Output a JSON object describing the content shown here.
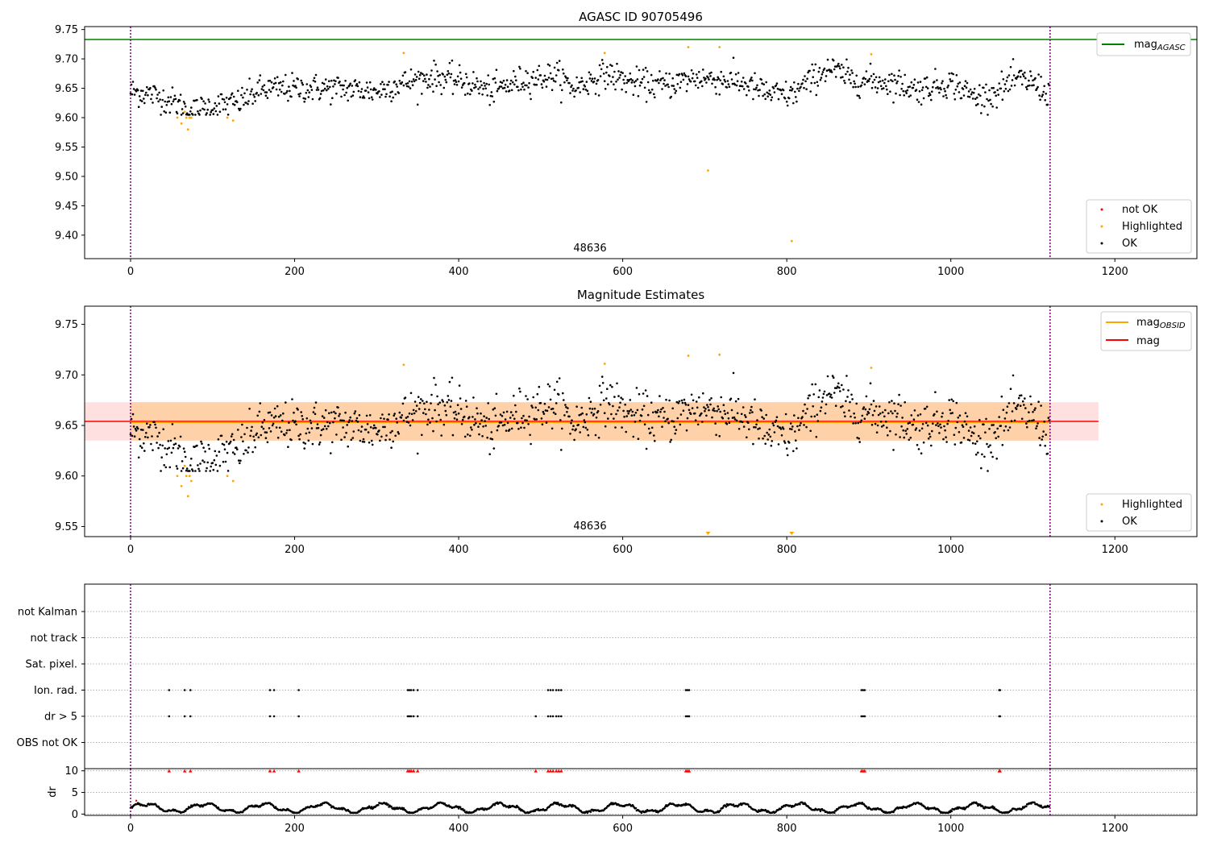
{
  "chart_data": [
    {
      "type": "scatter",
      "title": "AGASC ID 90705496",
      "xlabel": "",
      "ylabel": "",
      "xlim": [
        -56,
        1300
      ],
      "ylim": [
        9.36,
        9.755
      ],
      "xticks": [
        "0",
        "200",
        "400",
        "600",
        "800",
        "1000",
        "1200"
      ],
      "yticks": [
        "9.40",
        "9.45",
        "9.50",
        "9.55",
        "9.60",
        "9.65",
        "9.70",
        "9.75"
      ],
      "n_points": 1121,
      "mean_level": 9.655,
      "reference_line": {
        "name": "mag_AGASC",
        "label_main": "mag",
        "label_sub": "AGASC",
        "value": 9.733,
        "color": "#008000"
      },
      "vlines": [
        0,
        1121
      ],
      "annotation": {
        "text": "48636",
        "x": 560
      },
      "highlighted": [
        [
          57,
          9.6
        ],
        [
          62,
          9.59
        ],
        [
          66,
          9.61
        ],
        [
          68,
          9.6
        ],
        [
          70,
          9.58
        ],
        [
          72,
          9.6
        ],
        [
          74,
          9.6
        ],
        [
          118,
          9.6
        ],
        [
          125,
          9.595
        ],
        [
          333,
          9.71
        ],
        [
          578,
          9.71
        ],
        [
          680,
          9.72
        ],
        [
          704,
          9.51
        ],
        [
          718,
          9.72
        ],
        [
          806,
          9.39
        ],
        [
          903,
          9.708
        ]
      ],
      "legends": [
        {
          "position": "top-right",
          "entries": [
            {
              "label": "mag",
              "sub": "AGASC",
              "color": "#008000",
              "kind": "line"
            }
          ]
        },
        {
          "position": "bottom-right",
          "entries": [
            {
              "label": "not OK",
              "color": "#ff0000",
              "kind": "point"
            },
            {
              "label": "Highlighted",
              "color": "#ffa500",
              "kind": "point"
            },
            {
              "label": "OK",
              "color": "#000000",
              "kind": "point"
            }
          ]
        }
      ]
    },
    {
      "type": "scatter",
      "title": "Magnitude Estimates",
      "xlabel": "",
      "ylabel": "",
      "xlim": [
        -56,
        1300
      ],
      "ylim": [
        9.54,
        9.768
      ],
      "xticks": [
        "0",
        "200",
        "400",
        "600",
        "800",
        "1000",
        "1200"
      ],
      "yticks": [
        "9.55",
        "9.60",
        "9.65",
        "9.70",
        "9.75"
      ],
      "mag_line": {
        "label": "mag",
        "value": 9.654,
        "color": "#ff0000",
        "band": [
          9.635,
          9.673
        ],
        "x_range": [
          -56,
          1180
        ]
      },
      "mag_obsid_line": {
        "label_main": "mag",
        "label_sub": "OBSID",
        "value": 9.653,
        "color": "#ffa500",
        "band": [
          9.635,
          9.673
        ],
        "x_range": [
          0,
          1121
        ]
      },
      "vlines": [
        0,
        1121
      ],
      "annotation": {
        "text": "48636",
        "x": 560
      },
      "highlighted": [
        [
          57,
          9.6
        ],
        [
          62,
          9.59
        ],
        [
          66,
          9.61
        ],
        [
          68,
          9.6
        ],
        [
          70,
          9.58
        ],
        [
          72,
          9.6
        ],
        [
          74,
          9.595
        ],
        [
          118,
          9.6
        ],
        [
          125,
          9.595
        ],
        [
          333,
          9.71
        ],
        [
          578,
          9.711
        ],
        [
          680,
          9.719
        ],
        [
          718,
          9.72
        ],
        [
          903,
          9.707
        ]
      ],
      "out_of_range_markers": [
        704,
        806
      ],
      "legends": [
        {
          "position": "top-right",
          "entries": [
            {
              "label": "mag",
              "sub": "OBSID",
              "color": "#ffa500",
              "kind": "line"
            },
            {
              "label": "mag",
              "color": "#ff0000",
              "kind": "line"
            }
          ]
        },
        {
          "position": "bottom-right",
          "entries": [
            {
              "label": "Highlighted",
              "color": "#ffa500",
              "kind": "point"
            },
            {
              "label": "OK",
              "color": "#000000",
              "kind": "point"
            }
          ]
        }
      ]
    },
    {
      "type": "scatter",
      "title": "",
      "xlabel": "",
      "ylabel": "",
      "xlim": [
        -56,
        1300
      ],
      "categories": [
        "not Kalman",
        "not track",
        "Sat. pixel.",
        "Ion. rad.",
        "dr > 5",
        "OBS not OK"
      ],
      "flag_x": {
        "Ion. rad.": [
          47,
          66,
          73,
          170,
          175,
          205,
          338,
          340,
          342,
          345,
          350,
          509,
          512,
          515,
          519,
          522,
          525,
          677,
          679,
          681,
          891,
          893,
          895,
          1059,
          1060
        ],
        "dr > 5": [
          47,
          66,
          73,
          170,
          175,
          205,
          338,
          340,
          342,
          345,
          350,
          494,
          509,
          512,
          515,
          519,
          522,
          525,
          677,
          679,
          681,
          891,
          893,
          895,
          1059,
          1060
        ]
      },
      "vlines": [
        0,
        1121
      ]
    },
    {
      "type": "scatter",
      "title": "",
      "xlabel": "",
      "ylabel": "dr",
      "xlim": [
        -56,
        1300
      ],
      "ylim": [
        -0.3,
        10.5
      ],
      "xticks": [
        "0",
        "200",
        "400",
        "600",
        "800",
        "1000",
        "1200"
      ],
      "yticks": [
        "0",
        "5",
        "10"
      ],
      "cap_value": 10,
      "red_outlier": [
        [
          7,
          3.1
        ]
      ],
      "red_cap_x": [
        47,
        66,
        73,
        170,
        175,
        205,
        338,
        340,
        342,
        345,
        350,
        494,
        509,
        512,
        515,
        519,
        522,
        525,
        677,
        679,
        681,
        891,
        893,
        895,
        1059,
        1060
      ],
      "vlines": [
        0,
        1121
      ]
    }
  ]
}
